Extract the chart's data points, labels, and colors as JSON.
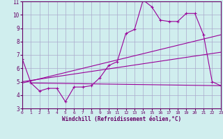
{
  "xlabel": "Windchill (Refroidissement éolien,°C)",
  "ylabel": "",
  "bg_color": "#d0eeee",
  "grid_color": "#aaaacc",
  "line_color": "#990099",
  "text_color": "#660066",
  "xlim": [
    0,
    23
  ],
  "ylim": [
    3,
    11
  ],
  "xticks": [
    0,
    1,
    2,
    3,
    4,
    5,
    6,
    7,
    8,
    9,
    10,
    11,
    12,
    13,
    14,
    15,
    16,
    17,
    18,
    19,
    20,
    21,
    22,
    23
  ],
  "yticks": [
    3,
    4,
    5,
    6,
    7,
    8,
    9,
    10,
    11
  ],
  "series": [
    [
      0,
      6.7
    ],
    [
      1,
      4.9
    ],
    [
      2,
      4.3
    ],
    [
      3,
      4.5
    ],
    [
      4,
      4.5
    ],
    [
      5,
      3.5
    ],
    [
      6,
      4.6
    ],
    [
      7,
      4.6
    ],
    [
      8,
      4.7
    ],
    [
      9,
      5.3
    ],
    [
      10,
      6.2
    ],
    [
      11,
      6.5
    ],
    [
      12,
      8.6
    ],
    [
      13,
      8.9
    ],
    [
      14,
      11.1
    ],
    [
      15,
      10.6
    ],
    [
      16,
      9.6
    ],
    [
      17,
      9.5
    ],
    [
      18,
      9.5
    ],
    [
      19,
      10.1
    ],
    [
      20,
      10.1
    ],
    [
      21,
      8.5
    ],
    [
      22,
      5.0
    ],
    [
      23,
      4.7
    ]
  ],
  "line2": [
    [
      1,
      4.9
    ],
    [
      23,
      4.7
    ]
  ],
  "line3": [
    [
      0,
      4.9
    ],
    [
      23,
      8.5
    ]
  ],
  "line4": [
    [
      0,
      5.0
    ],
    [
      23,
      7.2
    ]
  ]
}
